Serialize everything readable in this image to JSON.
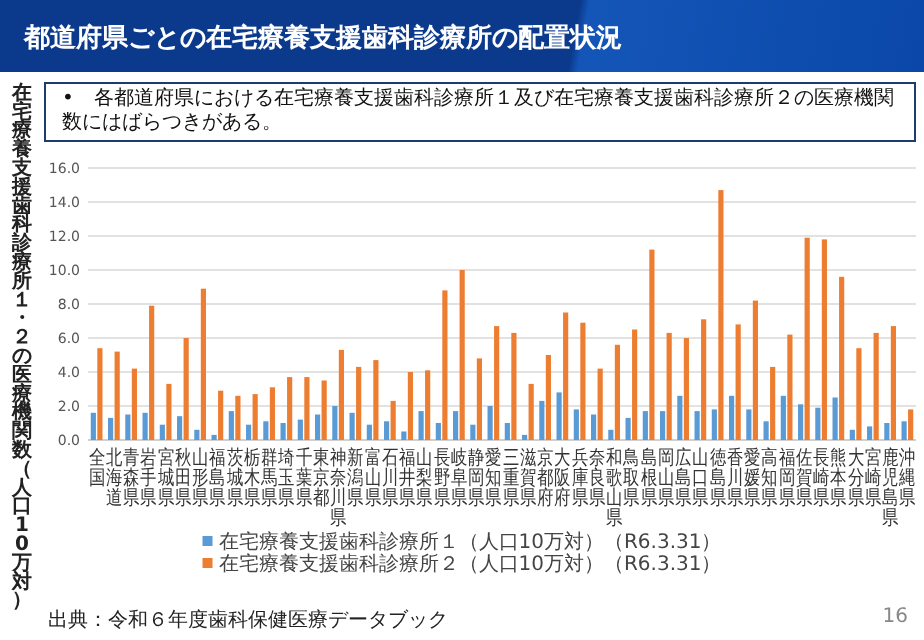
{
  "chart_data": {
    "type": "bar",
    "title": "都道府県ごとの在宅療養支援歯科診療所の配置状況",
    "annotations": [
      "•　各都道府県における在宅療養支援歯科診療所１及び在宅療養支援歯科診療所２の医療機関数にはばらつきがある。",
      "出典：令和６年度歯科保健医療データブック",
      "16"
    ],
    "ylabel": "在宅療養支援歯科診療所１・２の医療機関数（人口10万対）",
    "categories": [
      "全国",
      "北海道",
      "青森県",
      "岩手県",
      "宮城県",
      "秋田県",
      "山形県",
      "福島県",
      "茨城県",
      "栃木県",
      "群馬県",
      "埼玉県",
      "千葉県",
      "東京都",
      "神奈川県",
      "新潟県",
      "富山県",
      "石川県",
      "福井県",
      "山梨県",
      "長野県",
      "岐阜県",
      "静岡県",
      "愛知県",
      "三重県",
      "滋賀県",
      "京都府",
      "大阪府",
      "兵庫県",
      "奈良県",
      "和歌山県",
      "鳥取県",
      "島根県",
      "岡山県",
      "広島県",
      "山口県",
      "徳島県",
      "香川県",
      "愛媛県",
      "高知県",
      "福岡県",
      "佐賀県",
      "長崎県",
      "熊本県",
      "大分県",
      "宮崎県",
      "鹿児島県",
      "沖縄県"
    ],
    "series": [
      {
        "name": "在宅療養支援歯科診療所１（人口10万対）（R6.3.31）",
        "color": "#5b9bd5",
        "values": [
          1.6,
          1.3,
          1.5,
          1.6,
          0.9,
          1.4,
          0.6,
          0.3,
          1.7,
          0.9,
          1.1,
          1.0,
          1.2,
          1.5,
          2.0,
          1.6,
          0.9,
          1.1,
          0.5,
          1.7,
          1.0,
          1.7,
          0.9,
          2.0,
          1.0,
          0.3,
          2.3,
          2.8,
          1.8,
          1.5,
          0.6,
          1.3,
          1.7,
          1.7,
          2.6,
          1.7,
          1.8,
          2.6,
          1.8,
          1.1,
          2.6,
          2.1,
          1.9,
          2.5,
          0.6,
          0.8,
          1.0,
          1.1
        ]
      },
      {
        "name": "在宅療養支援歯科診療所２（人口10万対）（R6.3.31）",
        "color": "#ed7d31",
        "values": [
          5.4,
          5.2,
          4.2,
          7.9,
          3.3,
          6.0,
          8.9,
          2.9,
          2.6,
          2.7,
          3.1,
          3.7,
          3.7,
          3.5,
          5.3,
          4.3,
          4.7,
          2.3,
          4.0,
          4.1,
          8.8,
          10.0,
          4.8,
          6.7,
          6.3,
          3.3,
          5.0,
          7.5,
          6.9,
          4.2,
          5.6,
          6.5,
          11.2,
          6.3,
          6.0,
          7.1,
          14.7,
          6.8,
          8.2,
          4.3,
          6.2,
          11.9,
          11.8,
          9.6,
          5.4,
          6.3,
          6.7,
          1.8
        ]
      }
    ],
    "ylim": [
      0,
      16
    ],
    "yticks": [
      {
        "value": 0,
        "label": "0.0"
      },
      {
        "value": 2,
        "label": "2.0"
      },
      {
        "value": 4,
        "label": "4.0"
      },
      {
        "value": 6,
        "label": "6.0"
      },
      {
        "value": 8,
        "label": "8.0"
      },
      {
        "value": 10,
        "label": "10.0"
      },
      {
        "value": 12,
        "label": "12.0"
      },
      {
        "value": 14,
        "label": "14.0"
      },
      {
        "value": 16,
        "label": "16.0"
      }
    ],
    "grid": "y",
    "legend": "bottom"
  }
}
